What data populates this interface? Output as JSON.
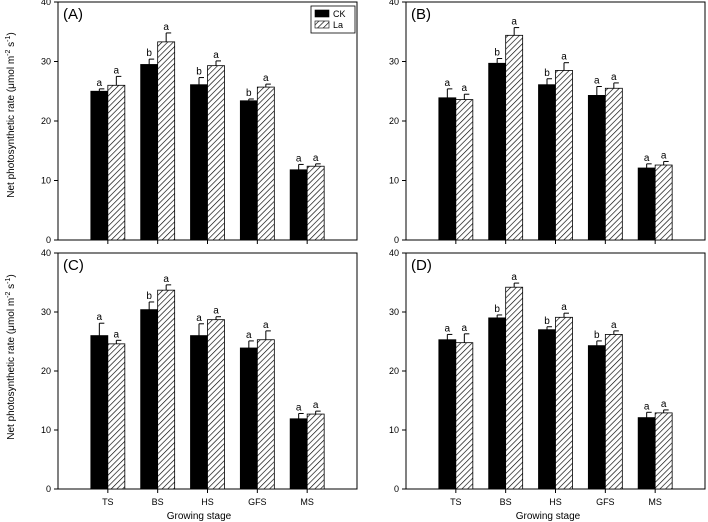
{
  "figure": {
    "ylabel_main": "Net photosynthetic rate (μmol m",
    "ylabel_sup1": "-2",
    "ylabel_mid": " s",
    "ylabel_sup2": "-1",
    "ylabel_end": ")",
    "xlabel": "Growing stage",
    "legend": [
      {
        "name": "CK",
        "color": "#000000",
        "pattern": "solid"
      },
      {
        "name": "La",
        "color": "#ffffff",
        "pattern": "hatch"
      }
    ]
  },
  "chart_data": [
    {
      "type": "bar",
      "panel": "(A)",
      "categories": [
        "TS",
        "BS",
        "HS",
        "GFS",
        "MS"
      ],
      "series": [
        {
          "name": "CK",
          "values": [
            25.0,
            29.5,
            26.1,
            23.4,
            11.8
          ],
          "errors": [
            0.4,
            0.9,
            1.2,
            0.3,
            0.9
          ],
          "letters": [
            "a",
            "b",
            "b",
            "b",
            "a"
          ]
        },
        {
          "name": "La",
          "values": [
            26.0,
            33.3,
            29.3,
            25.7,
            12.4
          ],
          "errors": [
            1.5,
            1.5,
            0.8,
            0.5,
            0.4
          ],
          "letters": [
            "a",
            "a",
            "a",
            "a",
            "a"
          ]
        }
      ],
      "ylim": [
        0,
        40
      ],
      "yticks": [
        0,
        10,
        20,
        30,
        40
      ],
      "show_legend": true,
      "legend_position": "top-right"
    },
    {
      "type": "bar",
      "panel": "(B)",
      "categories": [
        "TS",
        "BS",
        "HS",
        "GFS",
        "MS"
      ],
      "series": [
        {
          "name": "CK",
          "values": [
            23.9,
            29.7,
            26.1,
            24.3,
            12.1
          ],
          "errors": [
            1.5,
            0.8,
            1.0,
            1.5,
            0.7
          ],
          "letters": [
            "a",
            "b",
            "b",
            "a",
            "a"
          ]
        },
        {
          "name": "La",
          "values": [
            23.6,
            34.4,
            28.5,
            25.5,
            12.6
          ],
          "errors": [
            0.9,
            1.3,
            1.3,
            0.9,
            0.6
          ],
          "letters": [
            "a",
            "a",
            "a",
            "a",
            "a"
          ]
        }
      ],
      "ylim": [
        0,
        40
      ],
      "yticks": [
        0,
        10,
        20,
        30,
        40
      ],
      "show_legend": false
    },
    {
      "type": "bar",
      "panel": "(C)",
      "categories": [
        "TS",
        "BS",
        "HS",
        "GFS",
        "MS"
      ],
      "series": [
        {
          "name": "CK",
          "values": [
            26.0,
            30.4,
            26.0,
            23.9,
            11.9
          ],
          "errors": [
            2.1,
            1.3,
            2.0,
            1.2,
            0.9
          ],
          "letters": [
            "a",
            "b",
            "a",
            "a",
            "a"
          ]
        },
        {
          "name": "La",
          "values": [
            24.6,
            33.7,
            28.7,
            25.3,
            12.7
          ],
          "errors": [
            0.6,
            0.9,
            0.5,
            1.5,
            0.5
          ],
          "letters": [
            "a",
            "a",
            "a",
            "a",
            "a"
          ]
        }
      ],
      "ylim": [
        0,
        40
      ],
      "yticks": [
        0,
        10,
        20,
        30,
        40
      ],
      "show_legend": false
    },
    {
      "type": "bar",
      "panel": "(D)",
      "categories": [
        "TS",
        "BS",
        "HS",
        "GFS",
        "MS"
      ],
      "series": [
        {
          "name": "CK",
          "values": [
            25.3,
            29.0,
            27.0,
            24.3,
            12.1
          ],
          "errors": [
            0.9,
            0.5,
            0.5,
            0.8,
            0.9
          ],
          "letters": [
            "a",
            "b",
            "b",
            "b",
            "a"
          ]
        },
        {
          "name": "La",
          "values": [
            24.8,
            34.2,
            29.1,
            26.2,
            12.9
          ],
          "errors": [
            1.5,
            0.7,
            0.7,
            0.6,
            0.5
          ],
          "letters": [
            "a",
            "a",
            "a",
            "a",
            "a"
          ]
        }
      ],
      "ylim": [
        0,
        40
      ],
      "yticks": [
        0,
        10,
        20,
        30,
        40
      ],
      "show_legend": false
    }
  ]
}
